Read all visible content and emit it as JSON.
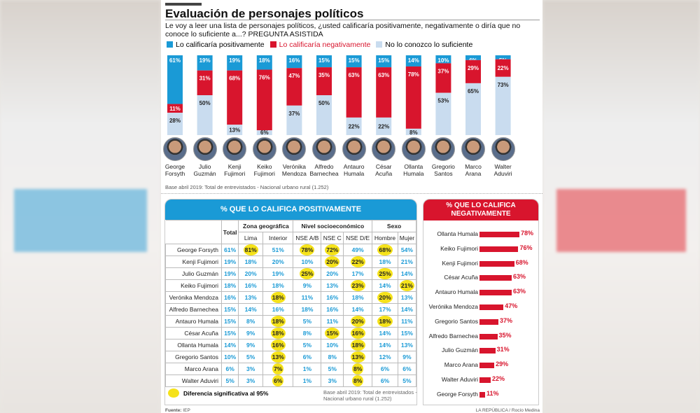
{
  "title": "Evaluación de personajes políticos",
  "question": "Le voy a leer una lista de personajes políticos, ¿usted calificaría positivamente, negativamente o diría que no conoce lo suficiente a...? PREGUNTA ASISTIDA",
  "colors": {
    "positive": "#1a9ad6",
    "negative": "#d8152d",
    "unknown": "#c9dcef",
    "highlight": "#f5e21a"
  },
  "chart_data": [
    {
      "type": "bar",
      "stacked": true,
      "ylim": [
        0,
        100
      ],
      "legend": [
        "Lo calificaría positivamente",
        "Lo calificaría negativamente",
        "No lo conozco lo suficiente"
      ],
      "categories": [
        "George Forsyth",
        "Julio Guzmán",
        "Kenji Fujimori",
        "Keiko Fujimori",
        "Verónika Mendoza",
        "Alfredo Barnechea",
        "Antauro Humala",
        "César Acuña",
        "Ollanta Humala",
        "Gregorio Santos",
        "Marco Arana",
        "Walter Aduviri"
      ],
      "series": [
        {
          "name": "Lo calificaría positivamente",
          "values": [
            61,
            19,
            19,
            18,
            16,
            15,
            15,
            15,
            14,
            10,
            6,
            5
          ]
        },
        {
          "name": "Lo calificaría negativamente",
          "values": [
            11,
            31,
            68,
            76,
            47,
            35,
            63,
            63,
            78,
            37,
            29,
            22
          ]
        },
        {
          "name": "No lo conozco lo suficiente",
          "values": [
            28,
            50,
            13,
            6,
            37,
            50,
            22,
            22,
            8,
            53,
            65,
            73
          ]
        }
      ]
    },
    {
      "type": "table",
      "title": "% QUE LO CALIFICA POSITIVAMENTE",
      "groups": [
        "Zona geográfica",
        "Nivel socioeconómico",
        "Sexo"
      ],
      "columns": [
        "Total",
        "Lima",
        "Interior",
        "NSE A/B",
        "NSE C",
        "NSE D/E",
        "Hombre",
        "Mujer"
      ],
      "rows": [
        {
          "name": "George Forsyth",
          "values": [
            61,
            81,
            51,
            78,
            72,
            49,
            68,
            54
          ],
          "significant": [
            "Lima",
            "NSE A/B",
            "NSE C",
            "Hombre"
          ]
        },
        {
          "name": "Kenji Fujimori",
          "values": [
            19,
            18,
            20,
            10,
            20,
            22,
            18,
            21
          ],
          "significant": [
            "NSE C",
            "NSE D/E"
          ]
        },
        {
          "name": "Julio Guzmán",
          "values": [
            19,
            20,
            19,
            25,
            20,
            17,
            25,
            14
          ],
          "significant": [
            "NSE A/B",
            "Hombre"
          ]
        },
        {
          "name": "Keiko Fujimori",
          "values": [
            18,
            16,
            18,
            9,
            13,
            23,
            14,
            21
          ],
          "significant": [
            "NSE D/E",
            "Mujer"
          ]
        },
        {
          "name": "Verónika Mendoza",
          "values": [
            16,
            13,
            18,
            11,
            16,
            18,
            20,
            13
          ],
          "significant": [
            "Interior",
            "Hombre"
          ]
        },
        {
          "name": "Alfredo Barnechea",
          "values": [
            15,
            14,
            16,
            18,
            16,
            14,
            17,
            14
          ],
          "significant": []
        },
        {
          "name": "Antauro Humala",
          "values": [
            15,
            8,
            18,
            5,
            11,
            20,
            18,
            11
          ],
          "significant": [
            "Interior",
            "NSE D/E",
            "Hombre"
          ]
        },
        {
          "name": "César Acuña",
          "values": [
            15,
            9,
            18,
            8,
            15,
            16,
            14,
            15
          ],
          "significant": [
            "Interior",
            "NSE C",
            "NSE D/E"
          ]
        },
        {
          "name": "Ollanta Humala",
          "values": [
            14,
            9,
            16,
            5,
            10,
            18,
            14,
            13
          ],
          "significant": [
            "Interior",
            "NSE D/E"
          ]
        },
        {
          "name": "Gregorio Santos",
          "values": [
            10,
            5,
            13,
            6,
            8,
            13,
            12,
            9
          ],
          "significant": [
            "Interior",
            "NSE D/E"
          ]
        },
        {
          "name": "Marco Arana",
          "values": [
            6,
            3,
            7,
            1,
            5,
            8,
            6,
            6
          ],
          "significant": [
            "Interior",
            "NSE D/E"
          ]
        },
        {
          "name": "Walter Aduviri",
          "values": [
            5,
            3,
            6,
            1,
            3,
            8,
            6,
            5
          ],
          "significant": [
            "Interior",
            "NSE D/E"
          ]
        }
      ]
    },
    {
      "type": "bar",
      "orientation": "horizontal",
      "title": "% QUE LO CALIFICA NEGATIVAMENTE",
      "categories": [
        "Ollanta Humala",
        "Keiko Fujimori",
        "Kenji Fujimori",
        "César Acuña",
        "Antauro Humala",
        "Verónika Mendoza",
        "Gregorio Santos",
        "Alfredo Barnechea",
        "Julio Guzmán",
        "Marco Arana",
        "Walter Aduviri",
        "George Forsyth"
      ],
      "values": [
        78,
        76,
        68,
        63,
        63,
        47,
        37,
        35,
        31,
        29,
        22,
        11
      ]
    }
  ],
  "names_display": [
    [
      "George",
      "Forsyth"
    ],
    [
      "Julio",
      "Guzmán"
    ],
    [
      "Kenji",
      "Fujimori"
    ],
    [
      "Keiko",
      "Fujimori"
    ],
    [
      "Verónika",
      "Mendoza"
    ],
    [
      "Alfredo",
      "Barnechea"
    ],
    [
      "Antauro",
      "Humala"
    ],
    [
      "César",
      "Acuña"
    ],
    [
      "Ollanta",
      "Humala"
    ],
    [
      "Gregorio",
      "Santos"
    ],
    [
      "Marco",
      "Arana"
    ],
    [
      "Walter",
      "Aduviri"
    ]
  ],
  "base_top": "Base abril 2019: Total de entrevistados - Nacional urbano rural (1.252)",
  "table_legend": "Diferencia significativa al 95%",
  "base_table": "Base abril 2019: Total de entrevistados - Nacional urbano rural (1.252)",
  "source_label": "Fuente:",
  "source": "IEP",
  "credit": "LA REPÚBLICA / Rocío Medina"
}
